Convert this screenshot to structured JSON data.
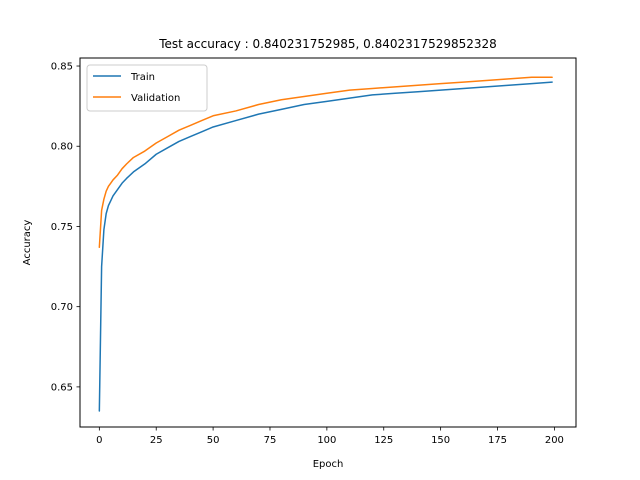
{
  "chart_data": {
    "type": "line",
    "title": "Test accuracy : 0.840231752985, 0.8402317529852328",
    "xlabel": "Epoch",
    "ylabel": "Accuracy",
    "xlim": [
      -8.5,
      209.5
    ],
    "ylim": [
      0.625,
      0.855
    ],
    "xticks": [
      0,
      25,
      50,
      75,
      100,
      125,
      150,
      175,
      200
    ],
    "yticks": [
      0.65,
      0.7,
      0.75,
      0.8,
      0.85
    ],
    "ytick_labels": [
      "0.65",
      "0.70",
      "0.75",
      "0.80",
      "0.85"
    ],
    "grid": false,
    "legend_position": "top-left",
    "series": [
      {
        "name": "Train",
        "color": "#1f77b4",
        "x": [
          0,
          1,
          2,
          3,
          4,
          5,
          6,
          8,
          10,
          12,
          15,
          20,
          25,
          30,
          35,
          40,
          45,
          50,
          60,
          70,
          80,
          90,
          100,
          110,
          120,
          130,
          140,
          150,
          160,
          170,
          180,
          190,
          199
        ],
        "y": [
          0.635,
          0.725,
          0.748,
          0.758,
          0.763,
          0.766,
          0.769,
          0.773,
          0.777,
          0.78,
          0.784,
          0.789,
          0.795,
          0.799,
          0.803,
          0.806,
          0.809,
          0.812,
          0.816,
          0.82,
          0.823,
          0.826,
          0.828,
          0.83,
          0.832,
          0.833,
          0.834,
          0.835,
          0.836,
          0.837,
          0.838,
          0.839,
          0.84
        ]
      },
      {
        "name": "Validation",
        "color": "#ff7f0e",
        "x": [
          0,
          1,
          2,
          3,
          4,
          5,
          6,
          8,
          10,
          12,
          15,
          20,
          25,
          30,
          35,
          40,
          45,
          50,
          60,
          70,
          80,
          90,
          100,
          110,
          120,
          130,
          140,
          150,
          160,
          170,
          180,
          190,
          199
        ],
        "y": [
          0.737,
          0.76,
          0.767,
          0.772,
          0.775,
          0.777,
          0.779,
          0.782,
          0.786,
          0.789,
          0.793,
          0.797,
          0.802,
          0.806,
          0.81,
          0.813,
          0.816,
          0.819,
          0.822,
          0.826,
          0.829,
          0.831,
          0.833,
          0.835,
          0.836,
          0.837,
          0.838,
          0.839,
          0.84,
          0.841,
          0.842,
          0.843,
          0.843
        ]
      }
    ]
  }
}
